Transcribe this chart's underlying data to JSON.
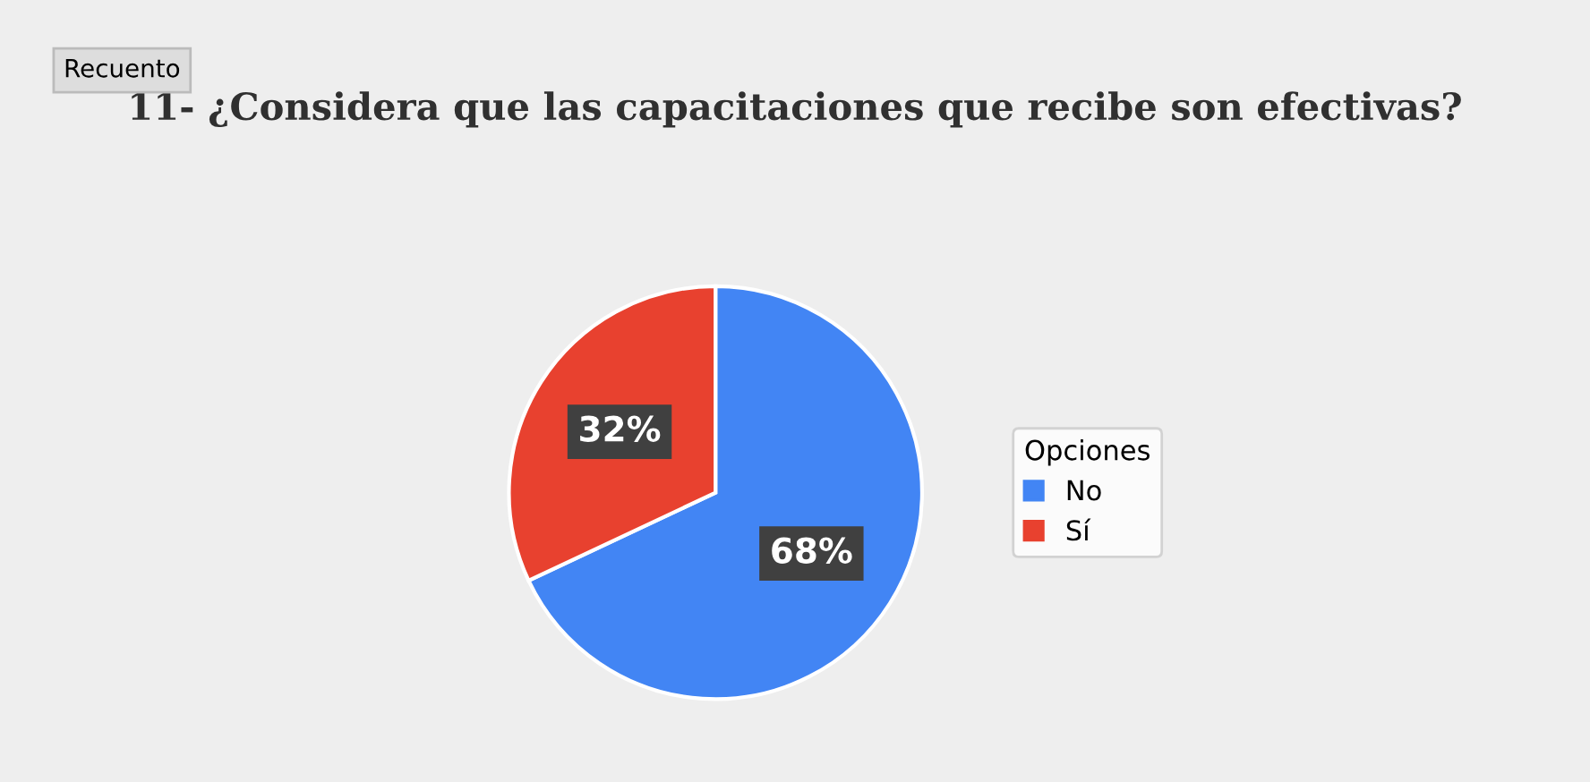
{
  "chart_data": {
    "type": "pie",
    "title": "11- ¿Considera que las capacitaciones que recibe son efectivas?",
    "categories": [
      "No",
      "Sí"
    ],
    "values": [
      68,
      32
    ],
    "colors": [
      "#4285f4",
      "#e8412f"
    ],
    "value_labels": [
      "68%",
      "32%"
    ],
    "legend_title": "Opciones",
    "legend": "right",
    "annotations": [
      "Recuento"
    ]
  }
}
